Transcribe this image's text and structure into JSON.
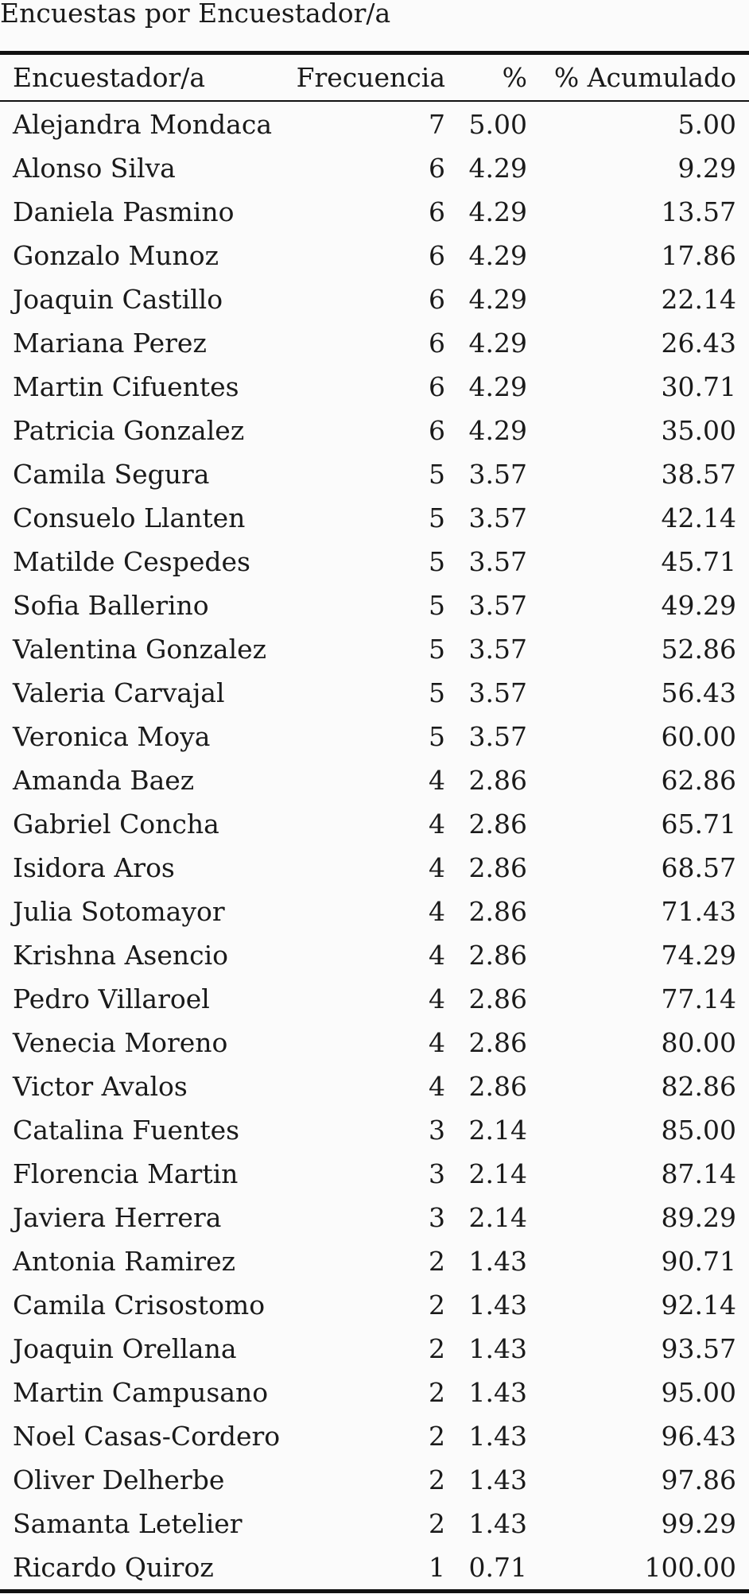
{
  "caption": "Encuestas por Encuestador/a",
  "columns": {
    "name": "Encuestador/a",
    "freq": "Frecuencia",
    "pct": "%",
    "cum": "% Acumulado"
  },
  "rows": [
    {
      "name": "Alejandra Mondaca",
      "freq": "7",
      "pct": "5.00",
      "cum": "5.00"
    },
    {
      "name": "Alonso Silva",
      "freq": "6",
      "pct": "4.29",
      "cum": "9.29"
    },
    {
      "name": "Daniela Pasmino",
      "freq": "6",
      "pct": "4.29",
      "cum": "13.57"
    },
    {
      "name": "Gonzalo Munoz",
      "freq": "6",
      "pct": "4.29",
      "cum": "17.86"
    },
    {
      "name": "Joaquin Castillo",
      "freq": "6",
      "pct": "4.29",
      "cum": "22.14"
    },
    {
      "name": "Mariana Perez",
      "freq": "6",
      "pct": "4.29",
      "cum": "26.43"
    },
    {
      "name": "Martin Cifuentes",
      "freq": "6",
      "pct": "4.29",
      "cum": "30.71"
    },
    {
      "name": "Patricia Gonzalez",
      "freq": "6",
      "pct": "4.29",
      "cum": "35.00"
    },
    {
      "name": "Camila Segura",
      "freq": "5",
      "pct": "3.57",
      "cum": "38.57"
    },
    {
      "name": "Consuelo Llanten",
      "freq": "5",
      "pct": "3.57",
      "cum": "42.14"
    },
    {
      "name": "Matilde Cespedes",
      "freq": "5",
      "pct": "3.57",
      "cum": "45.71"
    },
    {
      "name": "Sofia Ballerino",
      "freq": "5",
      "pct": "3.57",
      "cum": "49.29"
    },
    {
      "name": "Valentina Gonzalez",
      "freq": "5",
      "pct": "3.57",
      "cum": "52.86"
    },
    {
      "name": "Valeria Carvajal",
      "freq": "5",
      "pct": "3.57",
      "cum": "56.43"
    },
    {
      "name": "Veronica Moya",
      "freq": "5",
      "pct": "3.57",
      "cum": "60.00"
    },
    {
      "name": "Amanda Baez",
      "freq": "4",
      "pct": "2.86",
      "cum": "62.86"
    },
    {
      "name": "Gabriel Concha",
      "freq": "4",
      "pct": "2.86",
      "cum": "65.71"
    },
    {
      "name": "Isidora Aros",
      "freq": "4",
      "pct": "2.86",
      "cum": "68.57"
    },
    {
      "name": "Julia Sotomayor",
      "freq": "4",
      "pct": "2.86",
      "cum": "71.43"
    },
    {
      "name": "Krishna Asencio",
      "freq": "4",
      "pct": "2.86",
      "cum": "74.29"
    },
    {
      "name": "Pedro Villaroel",
      "freq": "4",
      "pct": "2.86",
      "cum": "77.14"
    },
    {
      "name": "Venecia Moreno",
      "freq": "4",
      "pct": "2.86",
      "cum": "80.00"
    },
    {
      "name": "Victor Avalos",
      "freq": "4",
      "pct": "2.86",
      "cum": "82.86"
    },
    {
      "name": "Catalina Fuentes",
      "freq": "3",
      "pct": "2.14",
      "cum": "85.00"
    },
    {
      "name": "Florencia Martin",
      "freq": "3",
      "pct": "2.14",
      "cum": "87.14"
    },
    {
      "name": "Javiera Herrera",
      "freq": "3",
      "pct": "2.14",
      "cum": "89.29"
    },
    {
      "name": "Antonia Ramirez",
      "freq": "2",
      "pct": "1.43",
      "cum": "90.71"
    },
    {
      "name": "Camila Crisostomo",
      "freq": "2",
      "pct": "1.43",
      "cum": "92.14"
    },
    {
      "name": "Joaquin Orellana",
      "freq": "2",
      "pct": "1.43",
      "cum": "93.57"
    },
    {
      "name": "Martin Campusano",
      "freq": "2",
      "pct": "1.43",
      "cum": "95.00"
    },
    {
      "name": "Noel Casas-Cordero",
      "freq": "2",
      "pct": "1.43",
      "cum": "96.43"
    },
    {
      "name": "Oliver Delherbe",
      "freq": "2",
      "pct": "1.43",
      "cum": "97.86"
    },
    {
      "name": "Samanta Letelier",
      "freq": "2",
      "pct": "1.43",
      "cum": "99.29"
    },
    {
      "name": "Ricardo Quiroz",
      "freq": "1",
      "pct": "0.71",
      "cum": "100.00"
    }
  ]
}
